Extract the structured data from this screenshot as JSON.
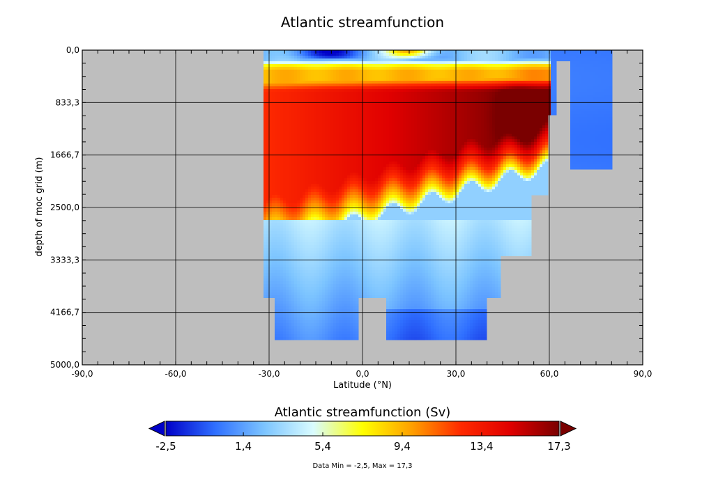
{
  "chart_data": {
    "type": "heatmap",
    "title": "Atlantic streamfunction",
    "xlabel": "Latitude (°N)",
    "ylabel": "depth of moc grid (m)",
    "xlim": [
      -90,
      90
    ],
    "ylim": [
      0,
      5000
    ],
    "y_inverted": true,
    "grid": true,
    "x_ticks": [
      "-90,0",
      "-60,0",
      "-30,0",
      "0,0",
      "30,0",
      "60,0",
      "90,0"
    ],
    "x_tick_values": [
      -90,
      -60,
      -30,
      0,
      30,
      60,
      90
    ],
    "y_ticks": [
      "0,0",
      "833,3",
      "1666,7",
      "2500,0",
      "3333,3",
      "4166,7",
      "5000,0"
    ],
    "y_tick_values": [
      0,
      833.3,
      1666.7,
      2500,
      3333.3,
      4166.7,
      5000
    ],
    "missing_color": "#bebebe",
    "colorbar": {
      "title": "Atlantic streamfunction (Sv)",
      "min": -2.5,
      "max": 17.3,
      "tick_labels": [
        "-2,5",
        "1,4",
        "5,4",
        "9,4",
        "13,4",
        "17,3"
      ],
      "tick_values": [
        -2.5,
        1.4,
        5.4,
        9.4,
        13.4,
        17.3
      ],
      "colors": [
        "#0000c8",
        "#2f6fff",
        "#7cc4ff",
        "#d9fcff",
        "#ffff00",
        "#ffa000",
        "#ff2a00",
        "#e00000",
        "#7a0000"
      ]
    },
    "footer": "Data Min = -2,5, Max = 17,3",
    "data_min": -2.5,
    "data_max": 17.3
  }
}
